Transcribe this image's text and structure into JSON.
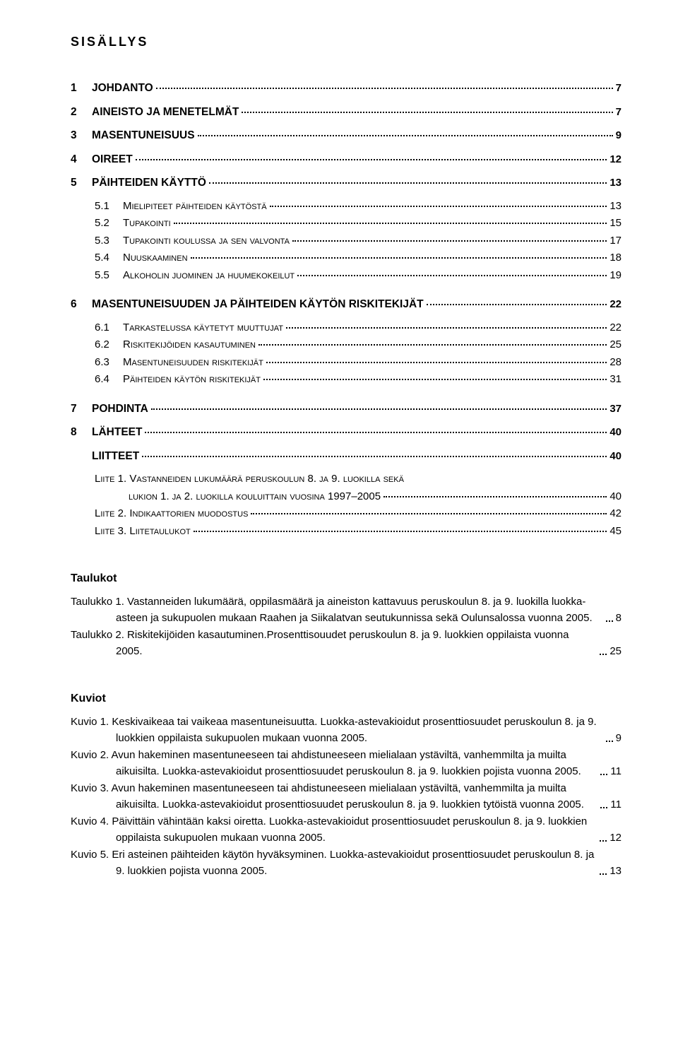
{
  "title": "SISÄLLYS",
  "text_color": "#000000",
  "background_color": "#ffffff",
  "font_family": "Arial",
  "toc": [
    {
      "level": 1,
      "num": "1",
      "label": "JOHDANTO",
      "page": "7",
      "bold": true
    },
    {
      "level": 1,
      "num": "2",
      "label": "AINEISTO JA MENETELMÄT",
      "page": "7",
      "bold": true
    },
    {
      "level": 1,
      "num": "3",
      "label": "MASENTUNEISUUS",
      "page": "9",
      "bold": true
    },
    {
      "level": 1,
      "num": "4",
      "label": "OIREET",
      "page": "12",
      "bold": true
    },
    {
      "level": 1,
      "num": "5",
      "label": "PÄIHTEIDEN KÄYTTÖ",
      "page": "13",
      "bold": true
    },
    {
      "level": 2,
      "num": "5.1",
      "label": "Mielipiteet päihteiden käytöstä",
      "page": "13"
    },
    {
      "level": 2,
      "num": "5.2",
      "label": "Tupakointi",
      "page": "15"
    },
    {
      "level": 2,
      "num": "5.3",
      "label": "Tupakointi koulussa ja sen valvonta",
      "page": "17"
    },
    {
      "level": 2,
      "num": "5.4",
      "label": "Nuuskaaminen",
      "page": "18"
    },
    {
      "level": 2,
      "num": "5.5",
      "label": "Alkoholin juominen ja huumekokeilut",
      "page": "19"
    },
    {
      "level": 1,
      "num": "6",
      "label": "MASENTUNEISUUDEN JA PÄIHTEIDEN KÄYTÖN RISKITEKIJÄT",
      "page": "22",
      "bold": true
    },
    {
      "level": 2,
      "num": "6.1",
      "label": "Tarkastelussa käytetyt muuttujat",
      "page": "22"
    },
    {
      "level": 2,
      "num": "6.2",
      "label": "Riskitekijöiden kasautuminen",
      "page": "25"
    },
    {
      "level": 2,
      "num": "6.3",
      "label": "Masentuneisuuden riskitekijät",
      "page": "28"
    },
    {
      "level": 2,
      "num": "6.4",
      "label": "Päihteiden käytön riskitekijät",
      "page": "31"
    },
    {
      "level": 1,
      "num": "7",
      "label": "POHDINTA",
      "page": "37",
      "bold": true
    },
    {
      "level": 1,
      "num": "8",
      "label": "LÄHTEET",
      "page": "40",
      "bold": true
    },
    {
      "level": 1,
      "num": "",
      "label": "LIITTEET",
      "page": "40",
      "bold": true
    }
  ],
  "liitteet": [
    {
      "label_sc": "Liite 1. Vastanneiden lukumäärä peruskoulun 8. ja 9. luokilla sekä",
      "wrap": "lukion 1. ja 2. luokilla kouluittain vuosina 1997–2005",
      "page": "40"
    },
    {
      "label_sc": "Liite 2. Indikaattorien muodostus",
      "page": "42"
    },
    {
      "label_sc": "Liite 3. Liitetaulukot",
      "page": "45"
    }
  ],
  "taulukot_heading": "Taulukot",
  "taulukot": [
    {
      "text": "Taulukko 1. Vastanneiden lukumäärä, oppilasmäärä ja aineiston kattavuus peruskoulun 8. ja 9. luokilla luokka-asteen ja sukupuolen mukaan Raahen ja Siikalatvan seutukunnissa sekä Oulunsalossa vuonna 2005.",
      "page": "8"
    },
    {
      "text": "Taulukko 2. Riskitekijöiden kasautuminen.Prosenttisouudet peruskoulun 8. ja 9. luokkien oppilaista vuonna 2005.",
      "page": "25"
    }
  ],
  "kuviot_heading": "Kuviot",
  "kuviot": [
    {
      "text": "Kuvio 1. Keskivaikeaa tai vaikeaa masentuneisuutta. Luokka-astevakioidut prosenttiosuudet peruskoulun 8. ja 9. luokkien oppilaista sukupuolen mukaan vuonna 2005.",
      "page": "9"
    },
    {
      "text": "Kuvio 2. Avun hakeminen masentuneeseen tai ahdistuneeseen mielialaan ystäviltä, vanhemmilta ja muilta aikuisilta. Luokka-astevakioidut prosenttiosuudet peruskoulun 8. ja 9. luokkien pojista vuonna 2005.",
      "page": "11"
    },
    {
      "text": "Kuvio 3. Avun hakeminen masentuneeseen tai ahdistuneeseen mielialaan ystäviltä, vanhemmilta ja muilta aikuisilta. Luokka-astevakioidut prosenttiosuudet peruskoulun 8. ja 9. luokkien tytöistä vuonna 2005.",
      "page": "11"
    },
    {
      "text": "Kuvio 4. Päivittäin vähintään kaksi oiretta. Luokka-astevakioidut prosenttiosuudet peruskoulun 8. ja 9. luokkien oppilaista sukupuolen mukaan vuonna 2005.",
      "page": "12"
    },
    {
      "text": "Kuvio 5. Eri asteinen päihteiden käytön hyväksyminen. Luokka-astevakioidut prosenttiosuudet peruskoulun 8. ja 9. luokkien pojista vuonna 2005.",
      "page": "13"
    }
  ]
}
